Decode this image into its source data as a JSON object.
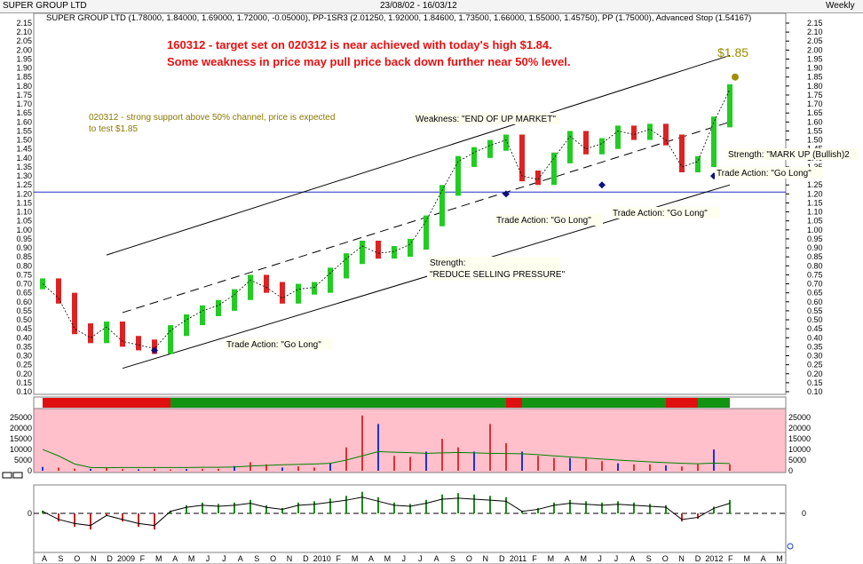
{
  "window": {
    "title": "SUPER GROUP LTD",
    "date_range": "23/08/02 - 16/03/12",
    "period": "Weekly"
  },
  "indicator_header": "SUPER GROUP LTD (1.78000, 1.84000, 1.69000, 1.72000, -0.05000), PP-1SR3 (2.01250, 1.92000, 1.84600, 1.73500, 1.66000, 1.55000, 1.45750), PP (1.75000), Advanced Stop (1.54167)",
  "annotations": {
    "headline_1": "160312 - target set on 020312 is near achieved with today's high $1.84.",
    "headline_2": "Some weakness in price may pull price back down further near 50% level.",
    "note_1": "020312 - strong support above 50% channel, price is expected",
    "note_2": "to test $1.85",
    "target_label": "$1.85",
    "weakness": "Weakness: \"END OF UP MARKET\"",
    "strength_1a": "Strength:",
    "strength_1b": "\"REDUCE SELLING PRESSURE\"",
    "strength_2": "Strength: \"MARK UP (Bullish)2",
    "trade_1": "Trade Action: \"Go Long\"",
    "trade_2": "Trade Action: \"Go Long\"",
    "trade_3": "Trade Action: \"Go Long\"",
    "trade_4": "Trade Action: \"Go Long\""
  },
  "colors": {
    "headline": "#e81010",
    "note": "#8a7a00",
    "target": "#9a8a00",
    "bull": "#22cc22",
    "bear": "#dd2222",
    "channel": "#000000",
    "hline": "#2030c0",
    "volume_bg": "#ffc0cb",
    "volume_line": "#008000",
    "ribbon_green": "#129412",
    "ribbon_red": "#e01010"
  },
  "chart_data": {
    "type": "line",
    "price_axis": {
      "ylim": [
        0.1,
        2.15
      ],
      "ticks": [
        "2.15",
        "2.10",
        "2.05",
        "2.00",
        "1.95",
        "1.90",
        "1.85",
        "1.80",
        "1.75",
        "1.70",
        "1.65",
        "1.60",
        "1.55",
        "1.50",
        "1.45",
        "1.40",
        "1.35",
        "1.30",
        "1.25",
        "1.20",
        "1.15",
        "1.10",
        "1.05",
        "1.00",
        "0.95",
        "0.90",
        "0.85",
        "0.80",
        "0.75",
        "0.70",
        "0.65",
        "0.60",
        "0.55",
        "0.50",
        "0.45",
        "0.40",
        "0.35",
        "0.30",
        "0.25",
        "0.20",
        "0.15",
        "0.10"
      ]
    },
    "horizontal_line": 1.21,
    "target_price": 1.85,
    "price_series": {
      "name": "SUPER GROUP LTD",
      "x": [
        "2008-08",
        "2008-09",
        "2008-10",
        "2008-11",
        "2008-12",
        "2009-01",
        "2009-02",
        "2009-03",
        "2009-04",
        "2009-05",
        "2009-06",
        "2009-07",
        "2009-08",
        "2009-09",
        "2009-10",
        "2009-11",
        "2009-12",
        "2010-01",
        "2010-02",
        "2010-03",
        "2010-04",
        "2010-05",
        "2010-06",
        "2010-07",
        "2010-08",
        "2010-09",
        "2010-10",
        "2010-11",
        "2010-12",
        "2011-01",
        "2011-02",
        "2011-03",
        "2011-04",
        "2011-05",
        "2011-06",
        "2011-07",
        "2011-08",
        "2011-09",
        "2011-10",
        "2011-11",
        "2011-12",
        "2012-01",
        "2012-02",
        "2012-03"
      ],
      "y": [
        0.7,
        0.62,
        0.45,
        0.4,
        0.46,
        0.38,
        0.36,
        0.34,
        0.44,
        0.5,
        0.55,
        0.58,
        0.64,
        0.72,
        0.68,
        0.62,
        0.67,
        0.68,
        0.76,
        0.84,
        0.91,
        0.87,
        0.88,
        0.92,
        1.05,
        1.22,
        1.38,
        1.43,
        1.47,
        1.5,
        1.3,
        1.28,
        1.4,
        1.52,
        1.45,
        1.48,
        1.55,
        1.53,
        1.56,
        1.5,
        1.35,
        1.38,
        1.6,
        1.78
      ]
    },
    "channel": {
      "upper": {
        "x": [
          "2008-12",
          "2012-03"
        ],
        "y": [
          0.86,
          1.97
        ]
      },
      "middle": {
        "x": [
          "2009-01",
          "2012-03"
        ],
        "y": [
          0.54,
          1.6
        ]
      },
      "lower": {
        "x": [
          "2009-01",
          "2012-03"
        ],
        "y": [
          0.23,
          1.25
        ]
      }
    },
    "volume_axis": {
      "ticks": [
        "25000",
        "20000",
        "15000",
        "10000",
        "5000",
        "0"
      ],
      "ylim": [
        0,
        28000
      ]
    },
    "volume": [
      1800,
      1500,
      1000,
      900,
      1600,
      800,
      700,
      900,
      600,
      800,
      900,
      900,
      2200,
      4000,
      3000,
      1500,
      2000,
      1500,
      3500,
      11000,
      26000,
      22000,
      7000,
      6500,
      9000,
      15000,
      11000,
      9000,
      22000,
      13000,
      9000,
      7000,
      6000,
      6000,
      5500,
      4500,
      3500,
      3000,
      3000,
      2500,
      2000,
      3000,
      10000,
      3000
    ],
    "volume_ma": [
      10000,
      7000,
      3200,
      1500,
      1400,
      1500,
      1500,
      1500,
      1500,
      1500,
      1600,
      1600,
      1800,
      2200,
      2500,
      2800,
      3000,
      3200,
      3500,
      5000,
      7000,
      9000,
      8700,
      8500,
      8200,
      8400,
      8600,
      8400,
      8200,
      8100,
      8000,
      7600,
      7000,
      6500,
      6000,
      5500,
      5000,
      4600,
      4200,
      3800,
      3500,
      3300,
      3600,
      3400
    ],
    "oscillator_axis": {
      "ticks": [
        "0"
      ],
      "ylim": [
        -1,
        1
      ]
    },
    "oscillator": [
      0.1,
      -0.3,
      -0.5,
      -0.6,
      -0.1,
      -0.3,
      -0.5,
      -0.6,
      0.1,
      0.3,
      0.4,
      0.35,
      0.4,
      0.5,
      0.3,
      0.2,
      0.4,
      0.45,
      0.55,
      0.65,
      0.8,
      0.6,
      0.4,
      0.35,
      0.5,
      0.7,
      0.75,
      0.7,
      0.65,
      0.6,
      0.1,
      0.2,
      0.4,
      0.5,
      0.45,
      0.4,
      0.45,
      0.4,
      0.35,
      0.3,
      -0.3,
      -0.2,
      0.25,
      0.5
    ],
    "time_axis": {
      "labels": [
        "A",
        "S",
        "O",
        "N",
        "D",
        "2009",
        "F",
        "M",
        "A",
        "M",
        "J",
        "J",
        "A",
        "S",
        "O",
        "N",
        "D",
        "2010",
        "F",
        "M",
        "A",
        "M",
        "J",
        "J",
        "A",
        "S",
        "O",
        "N",
        "D",
        "2011",
        "F",
        "M",
        "A",
        "M",
        "J",
        "J",
        "A",
        "S",
        "O",
        "N",
        "D",
        "2012",
        "F",
        "M",
        "A",
        "M"
      ]
    },
    "ribbon": [
      {
        "from": "2008-08",
        "to": "2009-04",
        "state": "red"
      },
      {
        "from": "2009-04",
        "to": "2011-01",
        "state": "green"
      },
      {
        "from": "2011-01",
        "to": "2011-02",
        "state": "red"
      },
      {
        "from": "2011-02",
        "to": "2011-06",
        "state": "green"
      },
      {
        "from": "2011-06",
        "to": "2011-11",
        "state": "green"
      },
      {
        "from": "2011-11",
        "to": "2012-01",
        "state": "red"
      },
      {
        "from": "2012-01",
        "to": "2012-03",
        "state": "green"
      }
    ]
  }
}
